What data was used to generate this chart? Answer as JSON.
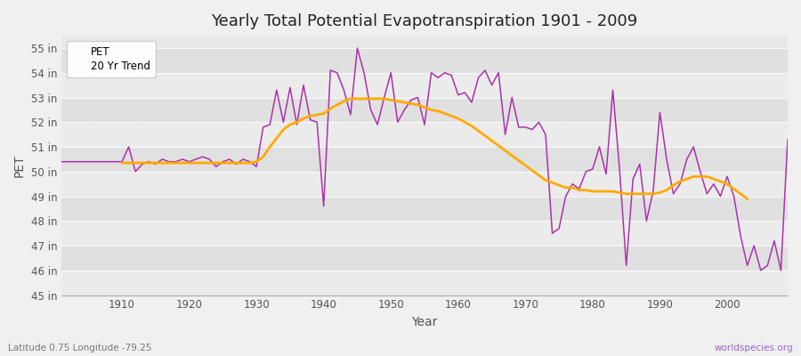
{
  "title": "Yearly Total Potential Evapotranspiration 1901 - 2009",
  "xlabel": "Year",
  "ylabel": "PET",
  "subtitle_left": "Latitude 0.75 Longitude -79.25",
  "subtitle_right": "worldspecies.org",
  "pet_color": "#aa33aa",
  "trend_color": "#ffaa00",
  "background_color": "#f0f0f0",
  "plot_bg_color": "#e8e8e8",
  "band_color_light": "#ebebeb",
  "band_color_dark": "#e0e0e0",
  "ylim": [
    45,
    55.5
  ],
  "yticks": [
    45,
    46,
    47,
    48,
    49,
    50,
    51,
    52,
    53,
    54,
    55
  ],
  "years": [
    1901,
    1902,
    1903,
    1904,
    1905,
    1906,
    1907,
    1908,
    1909,
    1910,
    1911,
    1912,
    1913,
    1914,
    1915,
    1916,
    1917,
    1918,
    1919,
    1920,
    1921,
    1922,
    1923,
    1924,
    1925,
    1926,
    1927,
    1928,
    1929,
    1930,
    1931,
    1932,
    1933,
    1934,
    1935,
    1936,
    1937,
    1938,
    1939,
    1940,
    1941,
    1942,
    1943,
    1944,
    1945,
    1946,
    1947,
    1948,
    1949,
    1950,
    1951,
    1952,
    1953,
    1954,
    1955,
    1956,
    1957,
    1958,
    1959,
    1960,
    1961,
    1962,
    1963,
    1964,
    1965,
    1966,
    1967,
    1968,
    1969,
    1970,
    1971,
    1972,
    1973,
    1974,
    1975,
    1976,
    1977,
    1978,
    1979,
    1980,
    1981,
    1982,
    1983,
    1984,
    1985,
    1986,
    1987,
    1988,
    1989,
    1990,
    1991,
    1992,
    1993,
    1994,
    1995,
    1996,
    1997,
    1998,
    1999,
    2000,
    2001,
    2002,
    2003,
    2004,
    2005,
    2006,
    2007,
    2008,
    2009
  ],
  "pet_values": [
    50.4,
    50.4,
    50.4,
    50.4,
    50.4,
    50.4,
    50.4,
    50.4,
    50.4,
    50.4,
    51.0,
    50.0,
    50.3,
    50.4,
    50.3,
    50.5,
    50.4,
    50.4,
    50.5,
    50.4,
    50.5,
    50.6,
    50.5,
    50.2,
    50.4,
    50.5,
    50.3,
    50.5,
    50.4,
    50.2,
    51.8,
    51.9,
    53.3,
    52.0,
    53.4,
    51.9,
    53.5,
    52.1,
    52.0,
    48.6,
    54.1,
    54.0,
    53.3,
    52.3,
    55.0,
    54.0,
    52.5,
    51.9,
    53.0,
    54.0,
    52.0,
    52.5,
    52.9,
    53.0,
    51.9,
    54.0,
    53.8,
    54.0,
    53.9,
    53.1,
    53.2,
    52.8,
    53.8,
    54.1,
    53.5,
    54.0,
    51.5,
    53.0,
    51.8,
    51.8,
    51.7,
    52.0,
    51.5,
    47.5,
    47.7,
    49.0,
    49.5,
    49.3,
    50.0,
    50.1,
    51.0,
    49.9,
    53.3,
    50.1,
    46.2,
    49.7,
    50.3,
    48.0,
    49.2,
    52.4,
    50.5,
    49.1,
    49.5,
    50.5,
    51.0,
    50.0,
    49.1,
    49.5,
    49.0,
    49.8,
    49.0,
    47.4,
    46.2,
    47.0,
    46.0,
    46.2,
    47.2,
    46.0,
    51.3
  ],
  "trend_values": [
    null,
    null,
    null,
    null,
    null,
    null,
    null,
    null,
    null,
    50.35,
    50.35,
    50.35,
    50.35,
    50.35,
    50.35,
    50.35,
    50.35,
    50.35,
    50.35,
    50.35,
    50.35,
    50.35,
    50.35,
    50.35,
    50.35,
    50.35,
    50.35,
    50.35,
    50.35,
    50.4,
    50.6,
    51.0,
    51.35,
    51.7,
    51.9,
    52.0,
    52.15,
    52.25,
    52.3,
    52.35,
    52.55,
    52.7,
    52.85,
    52.95,
    52.95,
    52.95,
    52.95,
    52.95,
    52.95,
    52.9,
    52.85,
    52.8,
    52.75,
    52.7,
    52.6,
    52.5,
    52.45,
    52.35,
    52.25,
    52.15,
    52.0,
    51.85,
    51.65,
    51.45,
    51.25,
    51.05,
    50.85,
    50.65,
    50.45,
    50.25,
    50.05,
    49.85,
    49.65,
    49.55,
    49.45,
    49.35,
    49.35,
    49.25,
    49.25,
    49.2,
    49.2,
    49.2,
    49.2,
    49.15,
    49.1,
    49.1,
    49.1,
    49.1,
    49.1,
    49.15,
    49.25,
    49.45,
    49.6,
    49.7,
    49.8,
    49.8,
    49.8,
    49.7,
    49.6,
    49.5,
    49.3,
    49.1,
    48.9,
    null,
    null,
    null,
    null,
    null,
    null
  ]
}
